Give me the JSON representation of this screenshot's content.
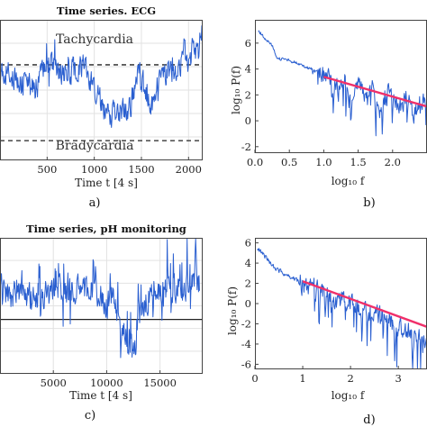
{
  "chart_data": [
    {
      "id": "a",
      "type": "line",
      "title": "Time series. ECG",
      "xlabel": "Time t [4 s]",
      "panel_label": "a)",
      "xlim": [
        0,
        2150
      ],
      "ylim": [
        0,
        10
      ],
      "x_ticks": [
        500,
        1000,
        1500,
        2000
      ],
      "grid": true,
      "annotations": [
        "Tachycardia",
        "Bradycardia"
      ],
      "reference_lines": [
        {
          "y": 6.8,
          "style": "dashed"
        },
        {
          "y": 1.4,
          "style": "dashed"
        }
      ],
      "series": [
        {
          "x": [
            0,
            100,
            200,
            300,
            350,
            400,
            500,
            600,
            700,
            800,
            870,
            920,
            980,
            1050,
            1100,
            1200,
            1280,
            1350,
            1400,
            1450,
            1500,
            1600,
            1700,
            1800,
            1900,
            1950,
            2000,
            2050,
            2100,
            2140
          ],
          "y": [
            6.2,
            6.4,
            5.3,
            5.5,
            5.0,
            5.4,
            7.0,
            6.3,
            6.0,
            6.5,
            6.6,
            6.3,
            5.3,
            4.8,
            3.6,
            3.3,
            3.4,
            3.5,
            4.3,
            6.5,
            5.7,
            4.1,
            6.1,
            6.5,
            6.4,
            7.8,
            6.2,
            8.5,
            7.2,
            9.3
          ]
        }
      ]
    },
    {
      "id": "b",
      "type": "line",
      "xlabel": "log₁₀ f",
      "ylabel": "log₁₀ P(f)",
      "panel_label": "b)",
      "xlim": [
        0,
        2.5
      ],
      "ylim": [
        -2.5,
        7.8
      ],
      "x_ticks": [
        "0.0",
        "0.5",
        "1.0",
        "1.5",
        "2.0"
      ],
      "y_ticks": [
        -2,
        0,
        2,
        4,
        6
      ],
      "grid": false,
      "series": [
        {
          "x": [
            0.05,
            0.15,
            0.25,
            0.33,
            0.45,
            0.6,
            0.75,
            0.9,
            1.0,
            1.1,
            1.2,
            1.3,
            1.4,
            1.5,
            1.6,
            1.7,
            1.8,
            1.9,
            2.0,
            2.1,
            2.2,
            2.3,
            2.4,
            2.5
          ],
          "y": [
            7.0,
            6.3,
            5.8,
            4.8,
            4.7,
            4.5,
            4.1,
            3.9,
            3.6,
            3.3,
            2.9,
            3.2,
            1.0,
            2.8,
            2.1,
            2.6,
            0.6,
            2.2,
            1.8,
            0.9,
            2.0,
            0.3,
            1.6,
            1.1
          ]
        },
        {
          "name": "",
          "x": [
            1.0,
            2.5
          ],
          "y": [
            3.4,
            1.1
          ],
          "role": "fit"
        }
      ]
    },
    {
      "id": "c",
      "type": "line",
      "title": "Time series, pH monitoring",
      "xlabel": "Time t [4 s]",
      "panel_label": "c)",
      "xlim": [
        0,
        19000
      ],
      "ylim": [
        0,
        10
      ],
      "x_ticks": [
        5000,
        10000,
        15000
      ],
      "grid": true,
      "reference_lines": [
        {
          "y": 4.0,
          "style": "solid"
        }
      ],
      "series": [
        {
          "x": [
            0,
            1000,
            2000,
            3000,
            4000,
            5000,
            6000,
            7000,
            8000,
            9000,
            10000,
            10500,
            11000,
            11500,
            12000,
            12500,
            13000,
            13500,
            14000,
            15000,
            16000,
            17000,
            18000,
            18700
          ],
          "y": [
            6.3,
            5.6,
            6.0,
            5.4,
            5.7,
            6.1,
            5.9,
            6.2,
            6.3,
            5.9,
            5.1,
            5.6,
            4.4,
            3.4,
            2.0,
            1.2,
            3.6,
            5.0,
            5.6,
            6.0,
            6.2,
            6.4,
            6.5,
            6.8
          ]
        }
      ]
    },
    {
      "id": "d",
      "type": "line",
      "xlabel": "log₁₀ f",
      "ylabel": "log₁₀ P(f)",
      "panel_label": "d)",
      "xlim": [
        0,
        3.6
      ],
      "ylim": [
        -6.5,
        6.5
      ],
      "x_ticks": [
        0,
        1,
        2,
        3
      ],
      "y_ticks": [
        -6,
        -4,
        -2,
        0,
        2,
        4,
        6
      ],
      "grid": false,
      "series": [
        {
          "x": [
            0.05,
            0.2,
            0.4,
            0.6,
            0.8,
            1.0,
            1.2,
            1.4,
            1.6,
            1.8,
            2.0,
            2.2,
            2.4,
            2.6,
            2.8,
            3.0,
            3.2,
            3.4,
            3.6
          ],
          "y": [
            5.5,
            4.7,
            3.6,
            3.0,
            2.5,
            1.9,
            1.6,
            1.2,
            0.7,
            0.4,
            0.1,
            -0.4,
            -0.8,
            -1.2,
            -1.7,
            -2.2,
            -2.6,
            -3.1,
            -3.5
          ]
        },
        {
          "name": "",
          "x": [
            1.0,
            3.6
          ],
          "y": [
            2.2,
            -2.3
          ],
          "role": "fit"
        }
      ]
    }
  ]
}
